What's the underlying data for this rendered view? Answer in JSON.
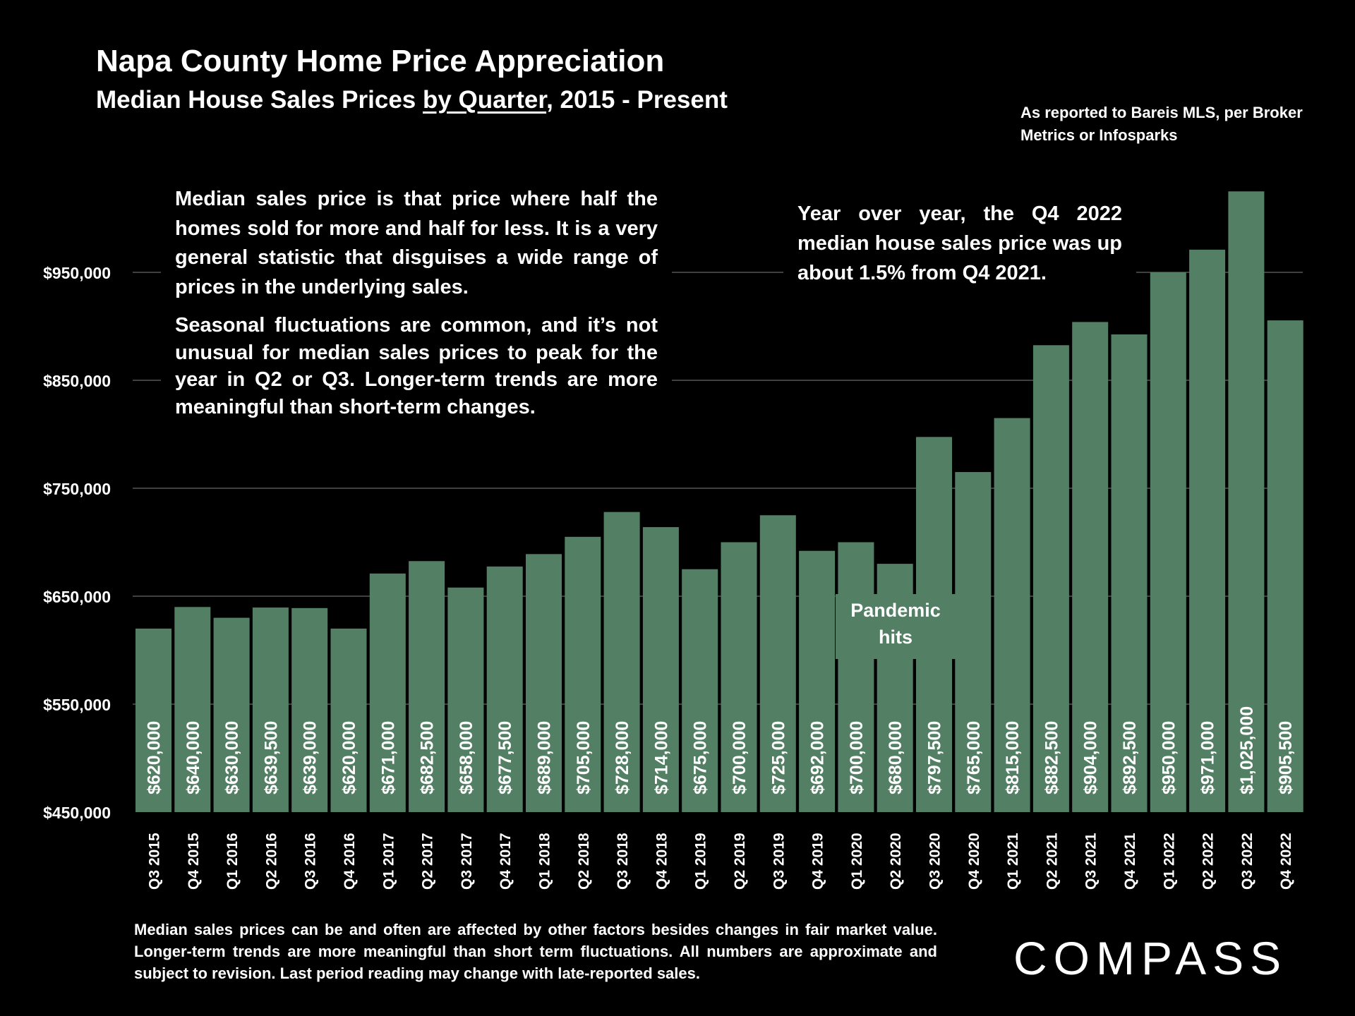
{
  "header": {
    "title": "Napa County Home Price Appreciation",
    "subtitle_pre": "Median House Sales Prices ",
    "subtitle_underlined": "by Quarter",
    "subtitle_post": ", 2015 - Present",
    "source": "As reported to Bareis MLS, per Broker Metrics or Infosparks"
  },
  "notes": {
    "left_p1": "Median sales price is that price where half the homes sold for more and half for less. It is a very general statistic that disguises a wide range of prices in the underlying sales.",
    "left_p2": "Seasonal fluctuations are common, and it’s not unusual for median sales prices to peak for the year in Q2 or Q3. Longer-term trends are more meaningful than short-term changes.",
    "right": "Year over year, the Q4 2022 median house sales price was up about 1.5% from Q4 2021.",
    "pandemic": "Pandemic hits"
  },
  "footnote": "Median sales prices can be and often are affected by other factors besides changes in fair market value. Longer-term trends are more meaningful than short term fluctuations. All numbers are approximate and subject to revision. Last period reading may change with late-reported sales.",
  "brand": "COMPASS",
  "colors": {
    "bar": "#538064",
    "background": "#000000",
    "gridline": "#555555",
    "text": "#ffffff"
  },
  "chart_data": {
    "type": "bar",
    "title": "Napa County Home Price Appreciation",
    "subtitle": "Median House Sales Prices by Quarter, 2015 - Present",
    "xlabel": "",
    "ylabel": "",
    "ylim": [
      450000,
      1050000
    ],
    "y_ticks": [
      450000,
      550000,
      650000,
      750000,
      850000,
      950000
    ],
    "y_tick_labels": [
      "$450,000",
      "$550,000",
      "$650,000",
      "$750,000",
      "$850,000",
      "$950,000"
    ],
    "grid": true,
    "categories": [
      "Q3 2015",
      "Q4 2015",
      "Q1 2016",
      "Q2 2016",
      "Q3 2016",
      "Q4 2016",
      "Q1 2017",
      "Q2 2017",
      "Q3 2017",
      "Q4 2017",
      "Q1 2018",
      "Q2 2018",
      "Q3 2018",
      "Q4 2018",
      "Q1 2019",
      "Q2 2019",
      "Q3 2019",
      "Q4 2019",
      "Q1 2020",
      "Q2 2020",
      "Q3 2020",
      "Q4 2020",
      "Q1 2021",
      "Q2 2021",
      "Q3 2021",
      "Q4 2021",
      "Q1 2022",
      "Q2 2022",
      "Q3 2022",
      "Q4 2022"
    ],
    "values": [
      620000,
      640000,
      630000,
      639500,
      639000,
      620000,
      671000,
      682500,
      658000,
      677500,
      689000,
      705000,
      728000,
      714000,
      675000,
      700000,
      725000,
      692000,
      700000,
      680000,
      797500,
      765000,
      815000,
      882500,
      904000,
      892500,
      950000,
      971000,
      1025000,
      905500
    ],
    "value_labels": [
      "$620,000",
      "$640,000",
      "$630,000",
      "$639,500",
      "$639,000",
      "$620,000",
      "$671,000",
      "$682,500",
      "$658,000",
      "$677,500",
      "$689,000",
      "$705,000",
      "$728,000",
      "$714,000",
      "$675,000",
      "$700,000",
      "$725,000",
      "$692,000",
      "$700,000",
      "$680,000",
      "$797,500",
      "$765,000",
      "$815,000",
      "$882,500",
      "$904,000",
      "$892,500",
      "$950,000",
      "$971,000",
      "$1,025,000",
      "$905,500"
    ]
  }
}
